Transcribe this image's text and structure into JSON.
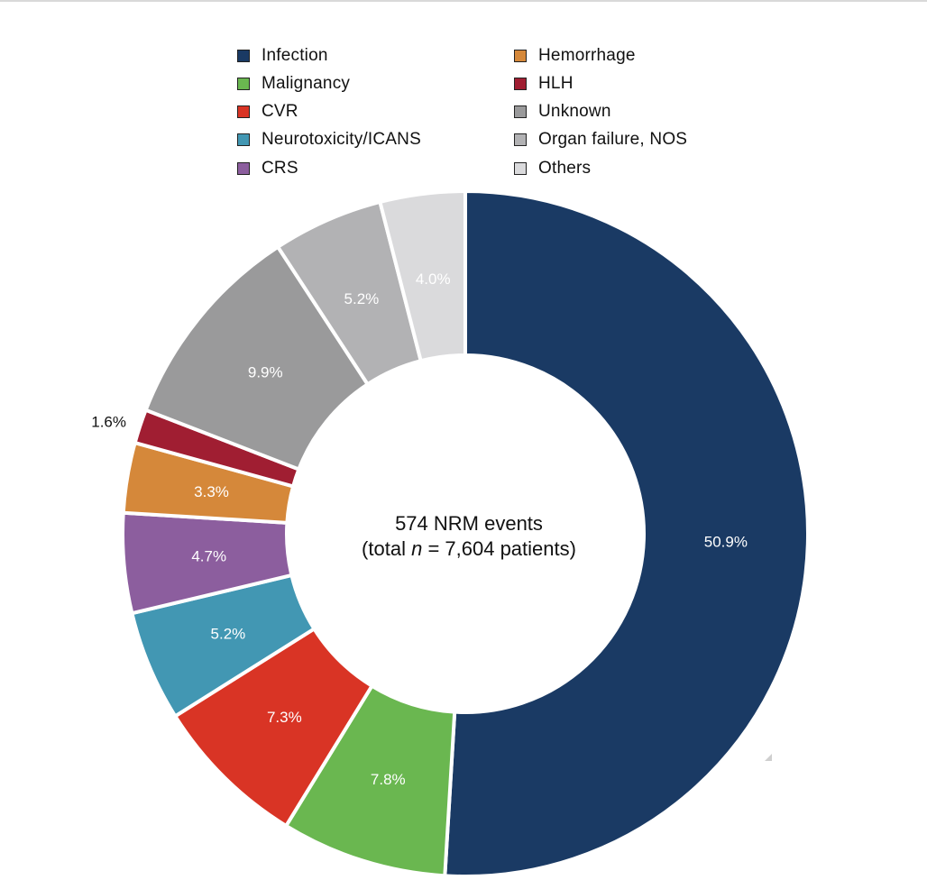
{
  "chart_data": {
    "type": "pie",
    "donut": true,
    "center_text": {
      "line1": "574 NRM events",
      "line2_prefix": "(total ",
      "line2_italic": "n",
      "line2_suffix": " = 7,604 patients)"
    },
    "legend_placement": "top",
    "slices": [
      {
        "label": "Infection",
        "value": 50.9,
        "display": "50.9%",
        "color": "#1a3a64",
        "label_color": "#ffffff"
      },
      {
        "label": "Malignancy",
        "value": 7.8,
        "display": "7.8%",
        "color": "#6ab750",
        "label_color": "#ffffff"
      },
      {
        "label": "CVR",
        "value": 7.3,
        "display": "7.3%",
        "color": "#d93425",
        "label_color": "#ffffff"
      },
      {
        "label": "Neurotoxicity/ICANS",
        "value": 5.2,
        "display": "5.2%",
        "color": "#4297b3",
        "label_color": "#ffffff"
      },
      {
        "label": "CRS",
        "value": 4.7,
        "display": "4.7%",
        "color": "#8c5e9e",
        "label_color": "#ffffff"
      },
      {
        "label": "Hemorrhage",
        "value": 3.3,
        "display": "3.3%",
        "color": "#d5883a",
        "label_color": "#ffffff"
      },
      {
        "label": "HLH",
        "value": 1.6,
        "display": "1.6%",
        "color": "#a01e32",
        "label_color": "#111111",
        "label_outside": true
      },
      {
        "label": "Unknown",
        "value": 9.9,
        "display": "9.9%",
        "color": "#9a9a9b",
        "label_color": "#ffffff"
      },
      {
        "label": "Organ failure, NOS",
        "value": 5.2,
        "display": "5.2%",
        "color": "#b2b2b4",
        "label_color": "#ffffff"
      },
      {
        "label": "Others",
        "value": 4.0,
        "display": "4.0%",
        "color": "#dadadc",
        "label_color": "#ffffff"
      }
    ],
    "legend_order": [
      "Infection",
      "Malignancy",
      "CVR",
      "Neurotoxicity/ICANS",
      "CRS",
      "Hemorrhage",
      "HLH",
      "Unknown",
      "Organ failure, NOS",
      "Others"
    ]
  }
}
